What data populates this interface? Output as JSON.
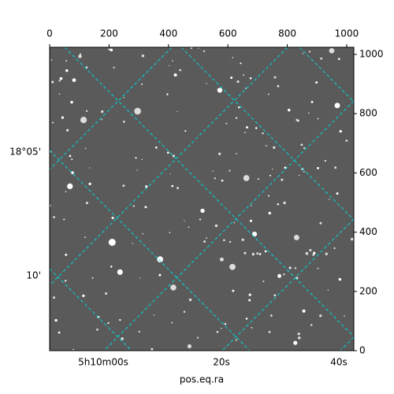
{
  "chart_data": {
    "type": "image",
    "xlim": [
      0,
      1024
    ],
    "xticks": [
      0,
      200,
      400,
      600,
      800,
      1000
    ],
    "ylim": [
      0,
      1024
    ],
    "yticks": [
      0,
      200,
      400,
      600,
      800,
      1000
    ],
    "dec_ticks": [
      "18°05'",
      "10'"
    ],
    "ra_ticks": [
      "5h10m00s",
      "20s",
      "40s"
    ],
    "xlabel": "pos.eq.ra"
  }
}
